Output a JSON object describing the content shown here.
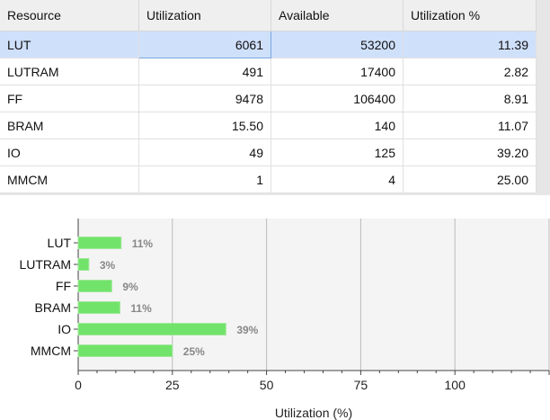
{
  "table": {
    "headers": [
      "Resource",
      "Utilization",
      "Available",
      "Utilization %"
    ],
    "rows": [
      [
        "LUT",
        "6061",
        "53200",
        "11.39"
      ],
      [
        "LUTRAM",
        "491",
        "17400",
        "2.82"
      ],
      [
        "FF",
        "9478",
        "106400",
        "8.91"
      ],
      [
        "BRAM",
        "15.50",
        "140",
        "11.07"
      ],
      [
        "IO",
        "49",
        "125",
        "39.20"
      ],
      [
        "MMCM",
        "1",
        "4",
        "25.00"
      ]
    ]
  },
  "chart_data": {
    "type": "bar",
    "orientation": "horizontal",
    "categories": [
      "LUT",
      "LUTRAM",
      "FF",
      "BRAM",
      "IO",
      "MMCM"
    ],
    "values": [
      11.39,
      2.82,
      8.91,
      11.07,
      39.2,
      25.0
    ],
    "data_labels": [
      "11%",
      "3%",
      "9%",
      "11%",
      "39%",
      "25%"
    ],
    "xlabel": "Utilization (%)",
    "xlim": [
      0,
      125
    ],
    "xticks": [
      "0",
      "25",
      "50",
      "75",
      "100"
    ],
    "grid": true,
    "bar_color": "#72e36a"
  }
}
